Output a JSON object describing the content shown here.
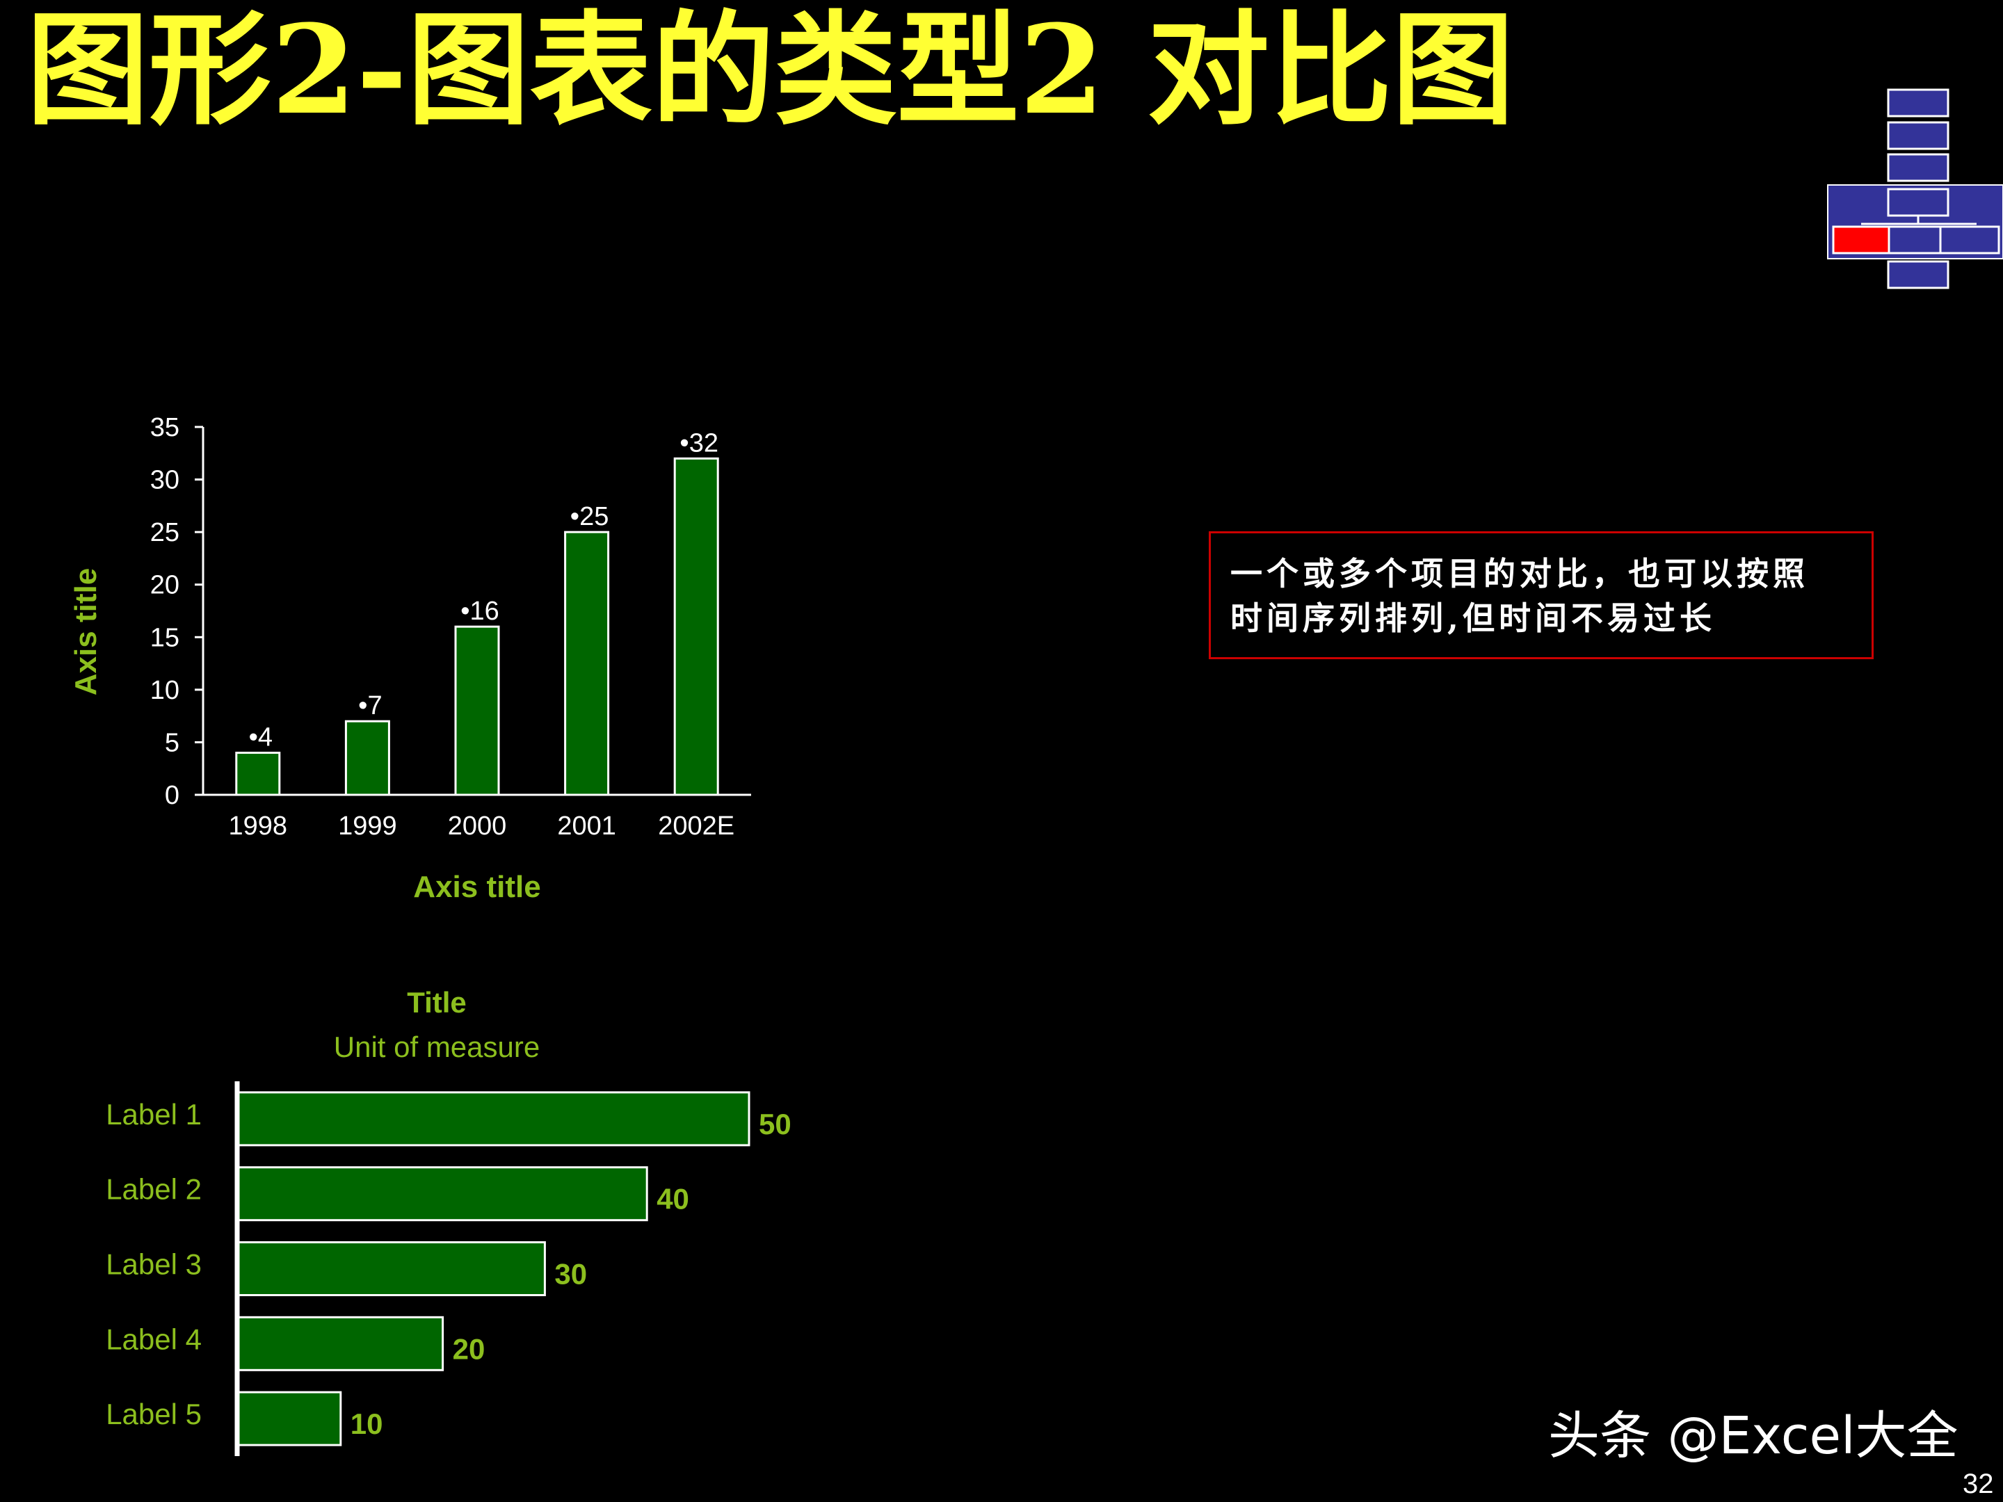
{
  "title": "图形2-图表的类型2 对比图",
  "note": "一个或多个项目的对比，也可以按照\n时间序列排列,但时间不易过长",
  "watermark": "头条 @Excel大全",
  "page_number": "32",
  "colors": {
    "background": "#000000",
    "title": "#ffff33",
    "bar_fill": "#006600",
    "bar_outline": "#ffffff",
    "axis_title": "#8cbf1e",
    "note_border": "#cc0000",
    "nav_block": "#333399",
    "nav_active": "#ff0000"
  },
  "chart_data": [
    {
      "type": "bar",
      "orientation": "vertical",
      "title": "",
      "categories": [
        "1998",
        "1999",
        "2000",
        "2001",
        "2002E"
      ],
      "values": [
        4,
        7,
        16,
        25,
        32
      ],
      "data_labels": [
        "•4",
        "•7",
        "•16",
        "•25",
        "•32"
      ],
      "xlabel": "Axis title",
      "ylabel": "Axis title",
      "ylim": [
        0,
        35
      ],
      "yticks": [
        0,
        5,
        10,
        15,
        20,
        25,
        30,
        35
      ],
      "grid": false,
      "legend": "none"
    },
    {
      "type": "bar",
      "orientation": "horizontal",
      "title": "Title",
      "subtitle": "Unit of measure",
      "categories": [
        "Label 1",
        "Label 2",
        "Label 3",
        "Label 4",
        "Label 5"
      ],
      "values": [
        50,
        40,
        30,
        20,
        10
      ],
      "xlim": [
        0,
        50
      ],
      "grid": false,
      "legend": "none"
    }
  ]
}
